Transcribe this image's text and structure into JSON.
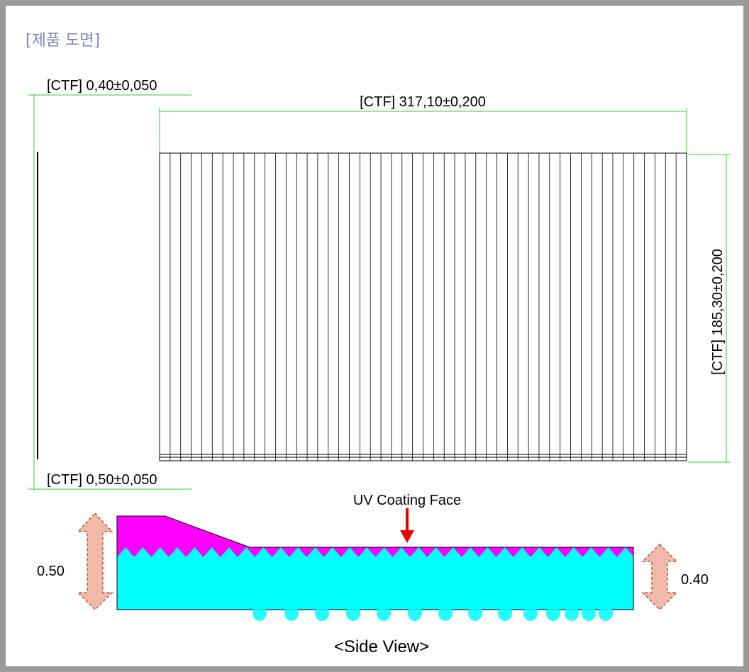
{
  "title": "[제품 도면]",
  "dimensions": {
    "top_thickness": "[CTF] 0,40±0,050",
    "width": "[CTF] 317,10±0,200",
    "height": "[CTF] 185,30±0,200",
    "bottom_thickness": "[CTF] 0,50±0,050"
  },
  "side_view": {
    "coating_label": "UV Coating Face",
    "left_thickness": "0.50",
    "right_thickness": "0.40",
    "caption": "<Side View>"
  },
  "colors": {
    "dimension_line": "#33cc33",
    "uv_coating": "#ff00ff",
    "base_layer": "#00ffff",
    "arrow_indicator": "#ee0000",
    "thickness_arrow_fill": "#f2b8a8",
    "thickness_arrow_stroke": "#b05a4a"
  },
  "front_view": {
    "vertical_line_count": 50
  }
}
